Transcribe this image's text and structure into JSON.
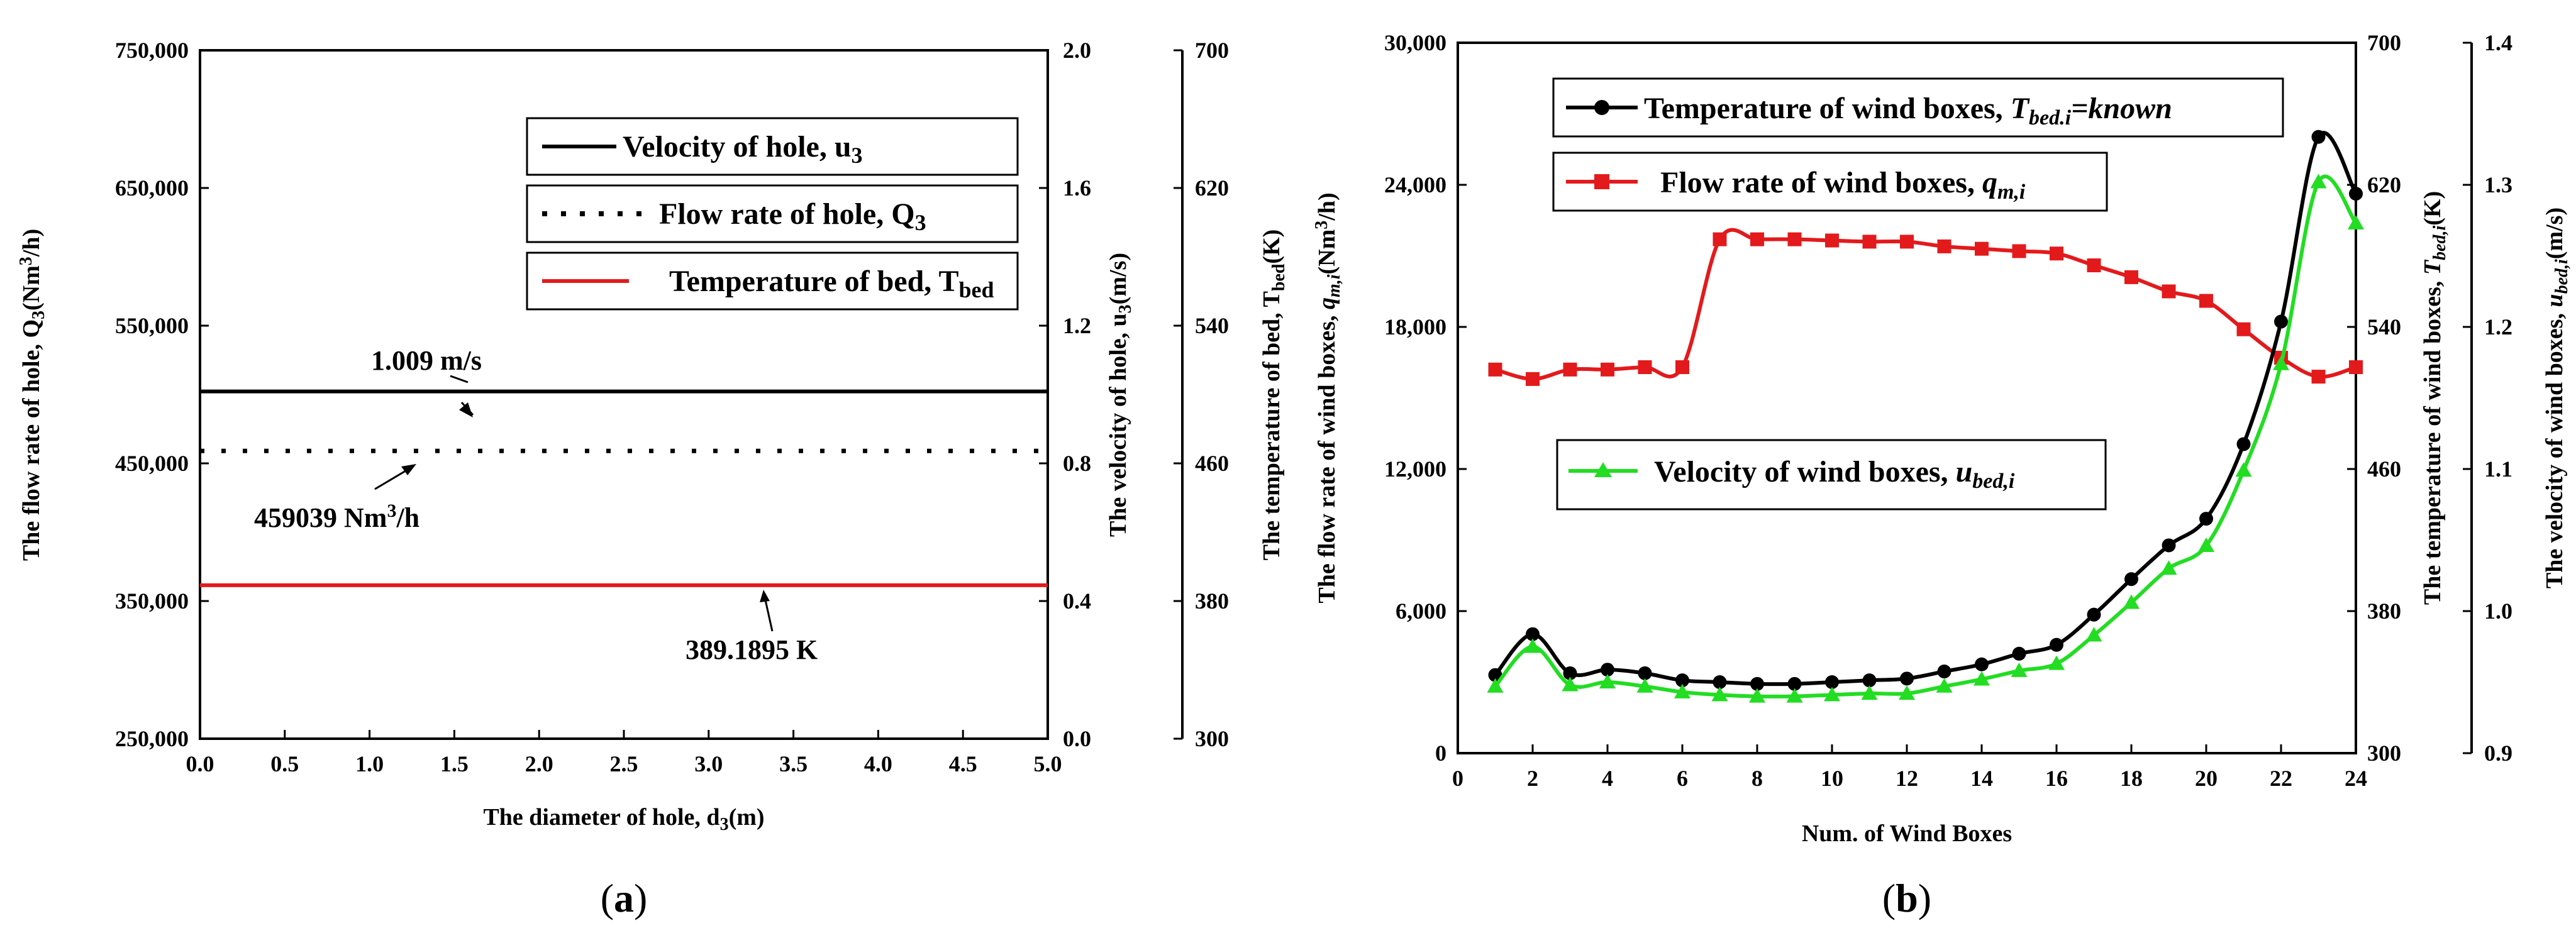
{
  "chart_data": [
    {
      "panel_label": "(a)",
      "type": "line",
      "xlabel": "The diameter of hole, d3(m)",
      "xlim": [
        0,
        5
      ],
      "xticks": [
        "0.0",
        "0.5",
        "1.0",
        "1.5",
        "2.0",
        "2.5",
        "3.0",
        "3.5",
        "4.0",
        "4.5",
        "5.0"
      ],
      "axes": {
        "flow": {
          "label": "The flow rate of hole, Q3(Nm3/h)",
          "ylim": [
            250000,
            750000
          ],
          "ticks": [
            "250,000",
            "350,000",
            "450,000",
            "550,000",
            "650,000",
            "750,000"
          ]
        },
        "velocity": {
          "label": "The velocity of hole, u3(m/s)",
          "ylim": [
            0,
            2
          ],
          "ticks": [
            "0.0",
            "0.4",
            "0.8",
            "1.2",
            "1.6",
            "2.0"
          ]
        },
        "temperature": {
          "label": "The temperature of bed, Tbed(K)",
          "ylim": [
            300,
            700
          ],
          "ticks": [
            "300",
            "380",
            "460",
            "540",
            "620",
            "700"
          ]
        }
      },
      "series": [
        {
          "name": "Velocity of hole, u3",
          "axis": "velocity",
          "color": "#000000",
          "style": "solid",
          "x": [
            0,
            5
          ],
          "y": [
            1.009,
            1.009
          ]
        },
        {
          "name": "Flow rate of hole, Q3",
          "axis": "flow",
          "color": "#000000",
          "style": "dotted",
          "x": [
            0,
            5
          ],
          "y": [
            459039,
            459039
          ]
        },
        {
          "name": "Temperature of bed, Tbed",
          "axis": "temperature",
          "color": "#e31a1c",
          "style": "solid",
          "x": [
            0,
            5
          ],
          "y": [
            389.1895,
            389.1895
          ]
        }
      ],
      "annotations": [
        {
          "text": "1.009 m/s",
          "axis": "velocity",
          "x": 1.3,
          "y": 1.009
        },
        {
          "text": "459039 Nm3/h",
          "axis": "flow",
          "x": 1.25,
          "y": 459039
        },
        {
          "text": "389.1895 K",
          "axis": "temperature",
          "x": 2.9,
          "y": 389.1895
        }
      ],
      "legend_position": "top-right",
      "grid": false
    },
    {
      "panel_label": "(b)",
      "type": "line",
      "xlabel": "Num. of Wind Boxes",
      "xlim": [
        0,
        24
      ],
      "xticks": [
        "0",
        "2",
        "4",
        "6",
        "8",
        "10",
        "12",
        "14",
        "16",
        "18",
        "20",
        "22",
        "24"
      ],
      "axes": {
        "flow": {
          "label": "The flow rate of wind boxes, qm,i(Nm3/h)",
          "ylim": [
            0,
            30000
          ],
          "ticks": [
            "0",
            "6,000",
            "12,000",
            "18,000",
            "24,000",
            "30,000"
          ]
        },
        "temperature": {
          "label": "The temperature of wind boxes, Tbed,i(K)",
          "ylim": [
            300,
            700
          ],
          "ticks": [
            "300",
            "380",
            "460",
            "540",
            "620",
            "700"
          ]
        },
        "velocity": {
          "label": "The velocity of wind boxes, ubed,i(m/s)",
          "ylim": [
            0.9,
            1.4
          ],
          "ticks": [
            "0.9",
            "1.0",
            "1.1",
            "1.2",
            "1.3",
            "1.4"
          ]
        }
      },
      "categories": [
        1,
        2,
        3,
        4,
        5,
        6,
        7,
        8,
        9,
        10,
        11,
        12,
        13,
        14,
        15,
        16,
        17,
        18,
        19,
        20,
        21,
        22,
        23,
        24
      ],
      "series": [
        {
          "name": "Temperature of wind boxes, Tbed,i=known",
          "axis": "temperature",
          "color": "#000000",
          "marker": "circle",
          "values": [
            344,
            367,
            345,
            347,
            345,
            341,
            340,
            339,
            339,
            340,
            341,
            342,
            346,
            350,
            356,
            361,
            378,
            398,
            417,
            432,
            474,
            543,
            647,
            615
          ]
        },
        {
          "name": "Flow rate of wind boxes, qm,i",
          "axis": "flow",
          "color": "#e31a1c",
          "marker": "square",
          "values": [
            16200,
            15800,
            16200,
            16200,
            16300,
            16300,
            21700,
            21700,
            21700,
            21650,
            21600,
            21600,
            21400,
            21300,
            21200,
            21100,
            20600,
            20100,
            19500,
            19100,
            17900,
            16700,
            15900,
            16300
          ]
        },
        {
          "name": "Velocity of wind boxes, ubed,i",
          "axis": "velocity",
          "color": "#22dd22",
          "marker": "triangle",
          "values": [
            0.947,
            0.975,
            0.948,
            0.95,
            0.947,
            0.943,
            0.941,
            0.94,
            0.94,
            0.941,
            0.942,
            0.942,
            0.947,
            0.952,
            0.958,
            0.963,
            0.983,
            1.006,
            1.03,
            1.046,
            1.099,
            1.174,
            1.302,
            1.273
          ]
        }
      ],
      "legend_position": "inside",
      "grid": false
    }
  ],
  "figure": {
    "labels": {
      "a": "(a)",
      "b": "(b)"
    }
  }
}
